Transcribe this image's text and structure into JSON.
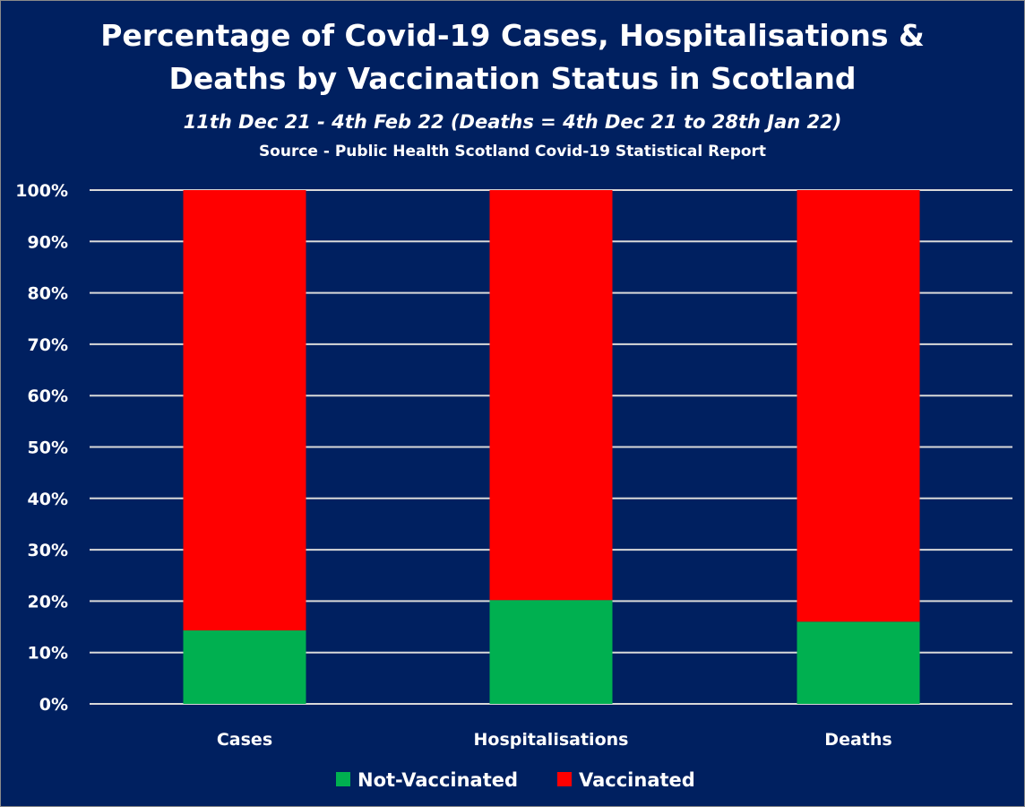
{
  "chart_data": {
    "type": "bar",
    "stacked": true,
    "title": "Percentage of Covid-19 Cases, Hospitalisations & Deaths by Vaccination Status in Scotland",
    "title_lines": [
      "Percentage of Covid-19 Cases, Hospitalisations &",
      "Deaths by Vaccination Status in Scotland"
    ],
    "subtitle": "11th Dec 21 - 4th Feb 22 (Deaths = 4th Dec 21 to 28th Jan 22)",
    "source": "Source - Public Health Scotland Covid-19 Statistical Report",
    "categories": [
      "Cases",
      "Hospitalisations",
      "Deaths"
    ],
    "series": [
      {
        "name": "Not-Vaccinated",
        "color": "#00B050",
        "values": [
          14.3,
          20.2,
          16.0
        ]
      },
      {
        "name": "Vaccinated",
        "color": "#FF0000",
        "values": [
          85.7,
          79.8,
          84.0
        ]
      }
    ],
    "yticks": [
      "0%",
      "10%",
      "20%",
      "30%",
      "40%",
      "50%",
      "60%",
      "70%",
      "80%",
      "90%",
      "100%"
    ],
    "ylim": [
      0,
      100
    ],
    "grid": true,
    "legend": "bottom",
    "background": "#002060"
  }
}
